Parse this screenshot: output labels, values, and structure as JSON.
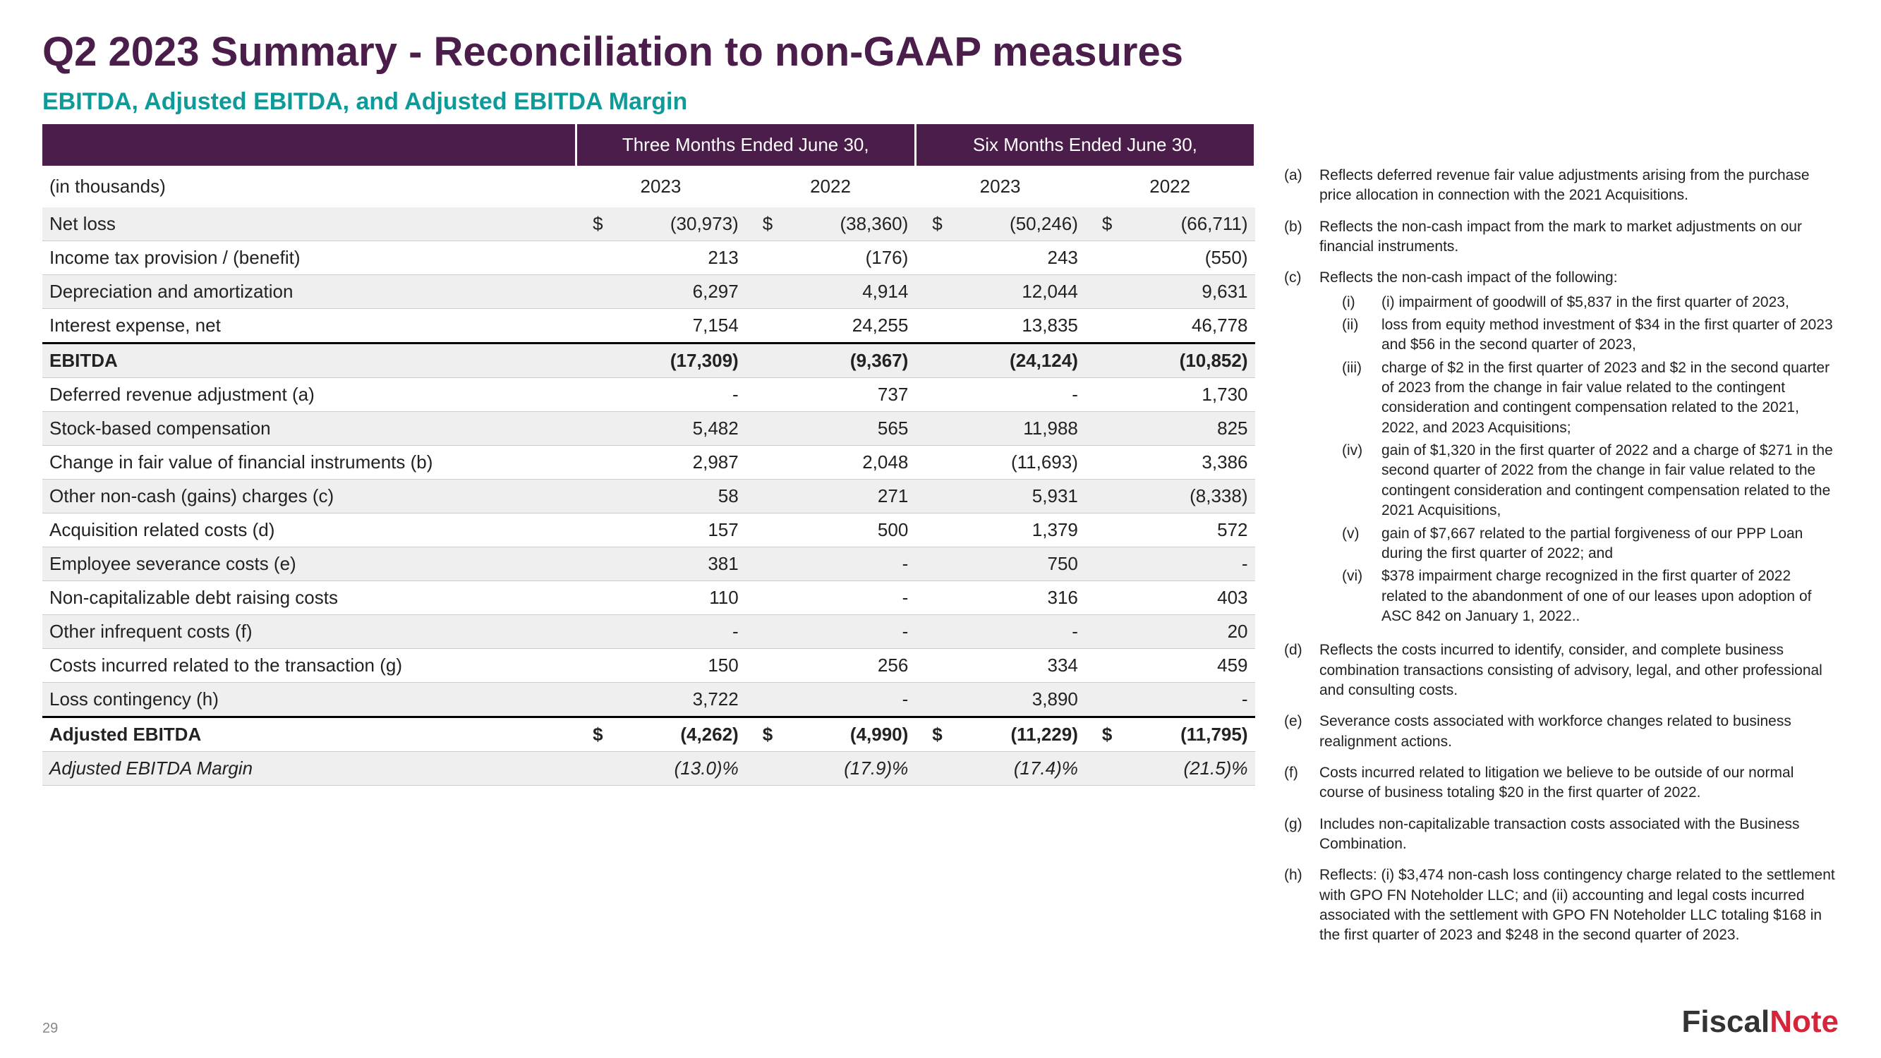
{
  "title": "Q2 2023 Summary - Reconciliation to non-GAAP measures",
  "subtitle": "EBITDA, Adjusted EBITDA, and Adjusted EBITDA Margin",
  "pageNumber": "29",
  "logo": {
    "part1": "Fiscal",
    "part2": "Note"
  },
  "periodHeaders": [
    "",
    "Three Months Ended June 30,",
    "Six Months Ended June 30,"
  ],
  "yearHeaders": [
    "(in thousands)",
    "2023",
    "2022",
    "2023",
    "2022"
  ],
  "rows": [
    {
      "label": "Net loss",
      "vals": [
        "(30,973)",
        "(38,360)",
        "(50,246)",
        "(66,711)"
      ],
      "currency": true
    },
    {
      "label": "Income tax provision / (benefit)",
      "vals": [
        "213",
        "(176)",
        "243",
        "(550)"
      ]
    },
    {
      "label": "Depreciation and amortization",
      "vals": [
        "6,297",
        "4,914",
        "12,044",
        "9,631"
      ]
    },
    {
      "label": "Interest expense, net",
      "vals": [
        "7,154",
        "24,255",
        "13,835",
        "46,778"
      ]
    },
    {
      "label": "EBITDA",
      "vals": [
        "(17,309)",
        "(9,367)",
        "(24,124)",
        "(10,852)"
      ],
      "bold": true,
      "sectionTop": true
    },
    {
      "label": "Deferred revenue adjustment (a)",
      "vals": [
        "-",
        "737",
        "-",
        "1,730"
      ]
    },
    {
      "label": "Stock-based compensation",
      "vals": [
        "5,482",
        "565",
        "11,988",
        "825"
      ]
    },
    {
      "label": "Change in fair value of financial instruments (b)",
      "vals": [
        "2,987",
        "2,048",
        "(11,693)",
        "3,386"
      ]
    },
    {
      "label": "Other non-cash (gains) charges (c)",
      "vals": [
        "58",
        "271",
        "5,931",
        "(8,338)"
      ]
    },
    {
      "label": "Acquisition related costs (d)",
      "vals": [
        "157",
        "500",
        "1,379",
        "572"
      ]
    },
    {
      "label": "Employee severance costs (e)",
      "vals": [
        "381",
        "-",
        "750",
        "-"
      ]
    },
    {
      "label": "Non-capitalizable debt raising costs",
      "vals": [
        "110",
        "-",
        "316",
        "403"
      ]
    },
    {
      "label": "Other infrequent costs (f)",
      "vals": [
        "-",
        "-",
        "-",
        "20"
      ]
    },
    {
      "label": "Costs incurred related to the transaction (g)",
      "vals": [
        "150",
        "256",
        "334",
        "459"
      ]
    },
    {
      "label": "Loss contingency (h)",
      "vals": [
        "3,722",
        "-",
        "3,890",
        "-"
      ]
    },
    {
      "label": "Adjusted EBITDA",
      "vals": [
        "(4,262)",
        "(4,990)",
        "(11,229)",
        "(11,795)"
      ],
      "bold": true,
      "currency": true,
      "doubleTop": true
    },
    {
      "label": "Adjusted EBITDA Margin",
      "vals": [
        "(13.0)%",
        "(17.9)%",
        "(17.4)%",
        "(21.5)%"
      ],
      "italic": true
    }
  ],
  "notes": [
    {
      "k": "(a)",
      "t": "Reflects deferred revenue fair value adjustments arising from the purchase price allocation in connection with the 2021 Acquisitions."
    },
    {
      "k": "(b)",
      "t": "Reflects the non-cash impact from the mark to market adjustments on our financial instruments."
    },
    {
      "k": "(c)",
      "t": "Reflects the non-cash impact of the following:",
      "subs": [
        {
          "k": "(i)",
          "t": "(i) impairment of goodwill of $5,837 in the first quarter of 2023,"
        },
        {
          "k": "(ii)",
          "t": "loss from equity method investment of $34 in the first quarter of 2023 and $56 in the second quarter of 2023,"
        },
        {
          "k": "(iii)",
          "t": "charge of $2 in the first quarter of 2023 and $2 in the second quarter of 2023 from the change in fair value related to the contingent consideration and contingent compensation related to the 2021, 2022, and 2023 Acquisitions;"
        },
        {
          "k": "(iv)",
          "t": "gain of $1,320 in the first quarter of 2022 and a charge of $271 in the second quarter of 2022 from the change in fair value related to the contingent consideration and contingent compensation related to the 2021 Acquisitions,"
        },
        {
          "k": "(v)",
          "t": "gain of $7,667 related to the partial forgiveness of our PPP Loan during the first quarter of 2022; and"
        },
        {
          "k": "(vi)",
          "t": "$378 impairment charge recognized in the first quarter of 2022 related to the abandonment of one of our leases upon adoption of ASC 842 on January 1, 2022.."
        }
      ]
    },
    {
      "k": "(d)",
      "t": "Reflects the costs incurred to identify, consider, and complete business combination transactions consisting of advisory, legal, and other professional and consulting costs."
    },
    {
      "k": "(e)",
      "t": "Severance costs associated with workforce changes related to business realignment actions."
    },
    {
      "k": "(f)",
      "t": "Costs incurred related to litigation we believe to be outside of our normal course of business totaling $20 in the first quarter of 2022."
    },
    {
      "k": "(g)",
      "t": "Includes non-capitalizable transaction costs associated with the Business Combination."
    },
    {
      "k": "(h)",
      "t": "Reflects: (i) $3,474 non-cash loss contingency charge related to the settlement with GPO FN Noteholder LLC; and (ii) accounting and legal costs incurred associated with the settlement with GPO FN Noteholder LLC totaling $168 in the first quarter of 2023 and $248 in the second quarter of 2023."
    }
  ]
}
